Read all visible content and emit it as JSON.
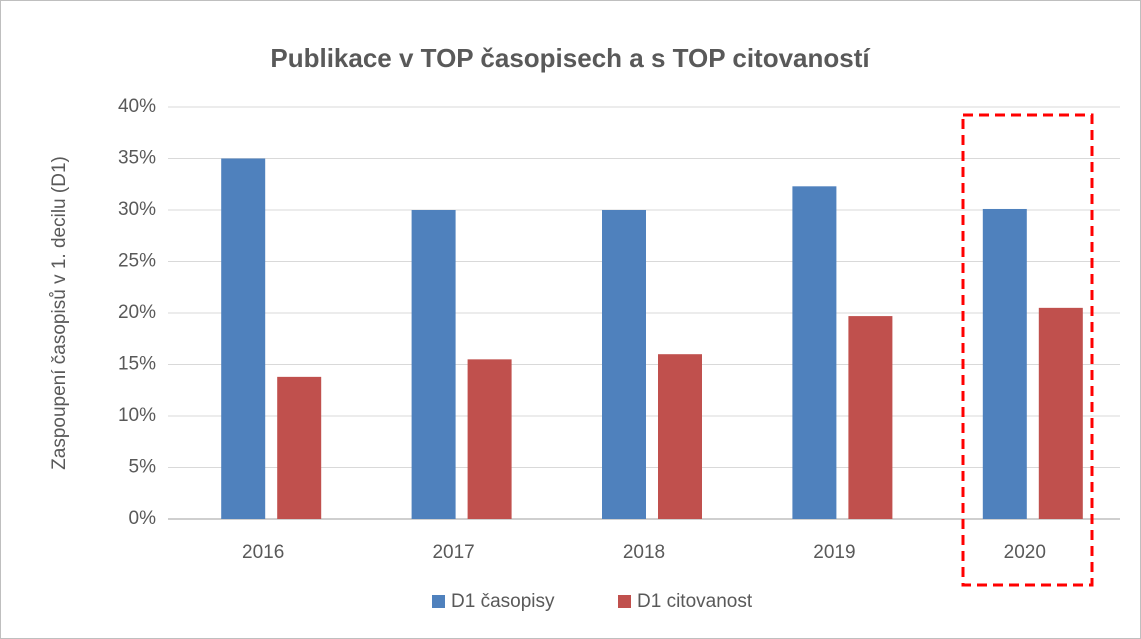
{
  "chart_data": {
    "type": "bar",
    "title": "Publikace v TOP časopisech a s TOP citovaností",
    "y_label": "Zaspoupení časopisů v 1. decilu (D1)",
    "categories": [
      "2016",
      "2017",
      "2018",
      "2019",
      "2020"
    ],
    "series": [
      {
        "name": "D1 časopisy",
        "color": "#4f81bd",
        "values": [
          35,
          30,
          30,
          32.3,
          30.1
        ]
      },
      {
        "name": "D1 citovanost",
        "color": "#c0504d",
        "values": [
          13.8,
          15.5,
          16,
          19.7,
          20.5
        ]
      }
    ],
    "ylim": [
      0,
      40
    ],
    "yticks": [
      {
        "value": 0,
        "label": "0%"
      },
      {
        "value": 5,
        "label": "5%"
      },
      {
        "value": 10,
        "label": "10%"
      },
      {
        "value": 15,
        "label": "15%"
      },
      {
        "value": 20,
        "label": "20%"
      },
      {
        "value": 25,
        "label": "25%"
      },
      {
        "value": 30,
        "label": "30%"
      },
      {
        "value": 35,
        "label": "35%"
      },
      {
        "value": 40,
        "label": "40%"
      }
    ],
    "grid": true,
    "legend": "bottom"
  }
}
